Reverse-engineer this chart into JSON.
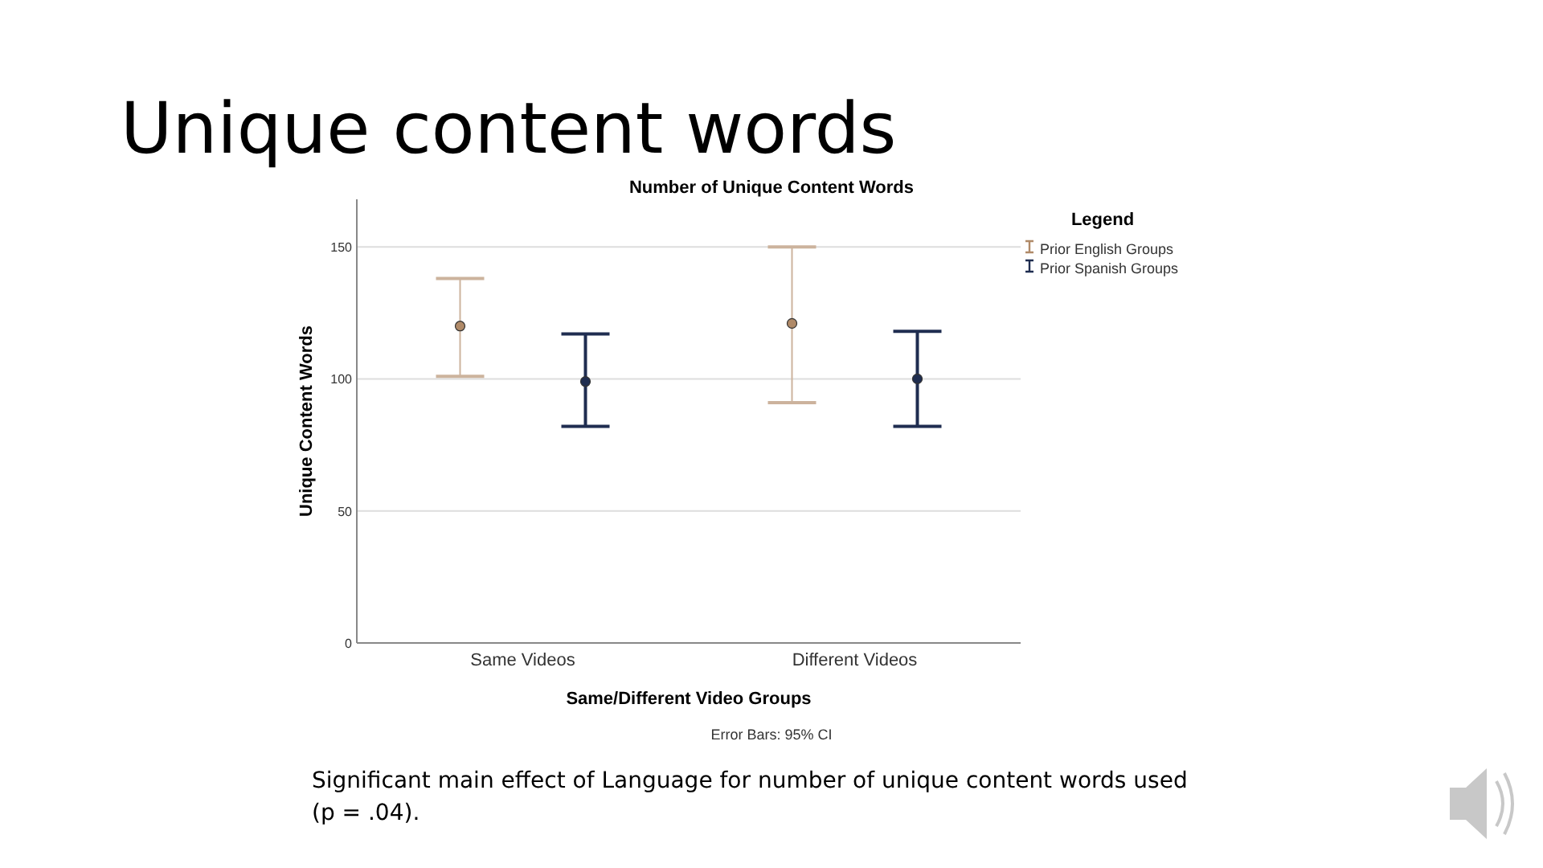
{
  "chart_data": {
    "type": "scatter",
    "title": "Unique content words",
    "subtitle": "Number of Unique Content Words",
    "xlabel": "Same/Different Video Groups",
    "ylabel": "Unique Content Words",
    "legend_title": "Legend",
    "categories": [
      "Same Videos",
      "Different Videos"
    ],
    "series": [
      {
        "name": "Prior English Groups",
        "color": "#b08a68",
        "values": [
          120,
          121
        ],
        "errors": [
          [
            101,
            138
          ],
          [
            91,
            150
          ]
        ]
      },
      {
        "name": "Prior Spanish Groups",
        "color": "#1f2d50",
        "values": [
          99,
          100
        ],
        "errors": [
          [
            82,
            117
          ],
          [
            82,
            118
          ]
        ]
      }
    ],
    "ylim": [
      0,
      168
    ],
    "yticks": [
      0,
      50,
      100,
      150
    ],
    "grid": "y",
    "legend": "right",
    "marker": "circle",
    "annotations": [
      "Error Bars: 95% CI",
      "Significant main effect of Language for number of unique content words used (p = .04)."
    ]
  }
}
